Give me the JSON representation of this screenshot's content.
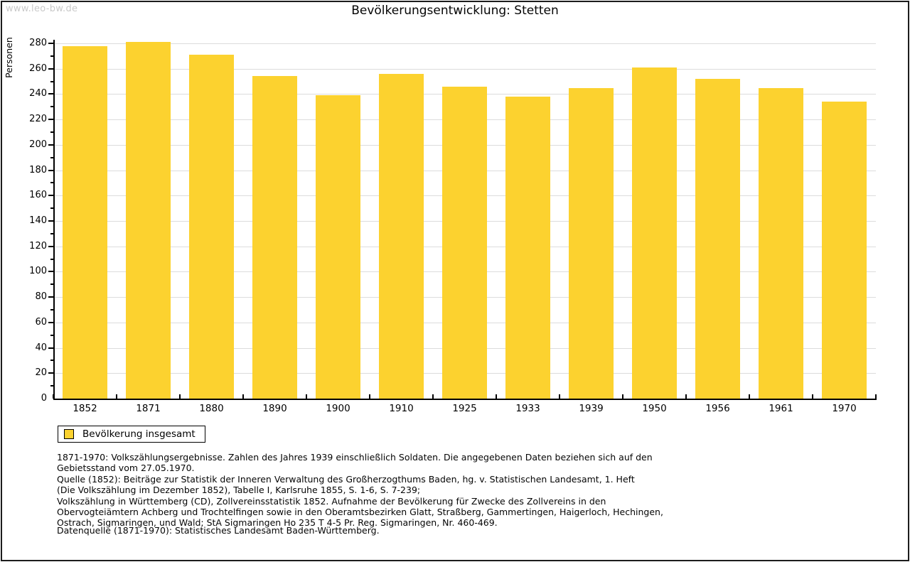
{
  "watermark": "www.leo-bw.de",
  "header": {
    "title": "Bevölkerungsentwicklung: Stetten"
  },
  "chart_data": {
    "type": "bar",
    "title": "Bevölkerungsentwicklung: Stetten",
    "categories": [
      "1852",
      "1871",
      "1880",
      "1890",
      "1900",
      "1910",
      "1925",
      "1933",
      "1939",
      "1950",
      "1956",
      "1961",
      "1970"
    ],
    "values": [
      278,
      281,
      271,
      254,
      239,
      256,
      246,
      238,
      245,
      261,
      252,
      245,
      234
    ],
    "series_name": "Bevölkerung insgesamt",
    "xlabel": "",
    "ylabel": "Personen",
    "ylim": [
      0,
      280
    ],
    "ytick_step": 20,
    "yminor_step": 10,
    "grid": true,
    "legend_position": "bottom-left",
    "bar_color": "#fcd22f"
  },
  "legend": {
    "label": "Bevölkerung insgesamt"
  },
  "footnotes": [
    "1871-1970: Volkszählungsergebnisse. Zahlen des Jahres 1939 einschließlich Soldaten. Die angegebenen Daten beziehen sich auf den",
    "Gebietsstand vom 27.05.1970.",
    "Quelle (1852): Beiträge zur Statistik der Inneren Verwaltung des Großherzogthums Baden, hg. v. Statistischen Landesamt, 1. Heft",
    "(Die Volkszählung im Dezember 1852), Tabelle I, Karlsruhe 1855, S. 1-6, S. 7-239;",
    "Volkszählung in Württemberg (CD), Zollvereinsstatistik 1852. Aufnahme der Bevölkerung für Zwecke des Zollvereins in den",
    "Obervogteiämtern Achberg und Trochtelfingen sowie in den Oberamtsbezirken Glatt, Straßberg, Gammertingen, Haigerloch, Hechingen,",
    "Ostrach, Sigmaringen, und Wald; StA Sigmaringen Ho 235 T 4-5 Pr. Reg. Sigmaringen, Nr. 460-469."
  ],
  "datasource": "Datenquelle (1871-1970): Statistisches Landesamt Baden-Württemberg.",
  "colors": {
    "bar": "#fcd22f",
    "grid": "#dcdcdc",
    "axis": "#000000",
    "watermark": "#c9c9c9",
    "background": "#ffffff",
    "frame": "#1c1c1c"
  }
}
